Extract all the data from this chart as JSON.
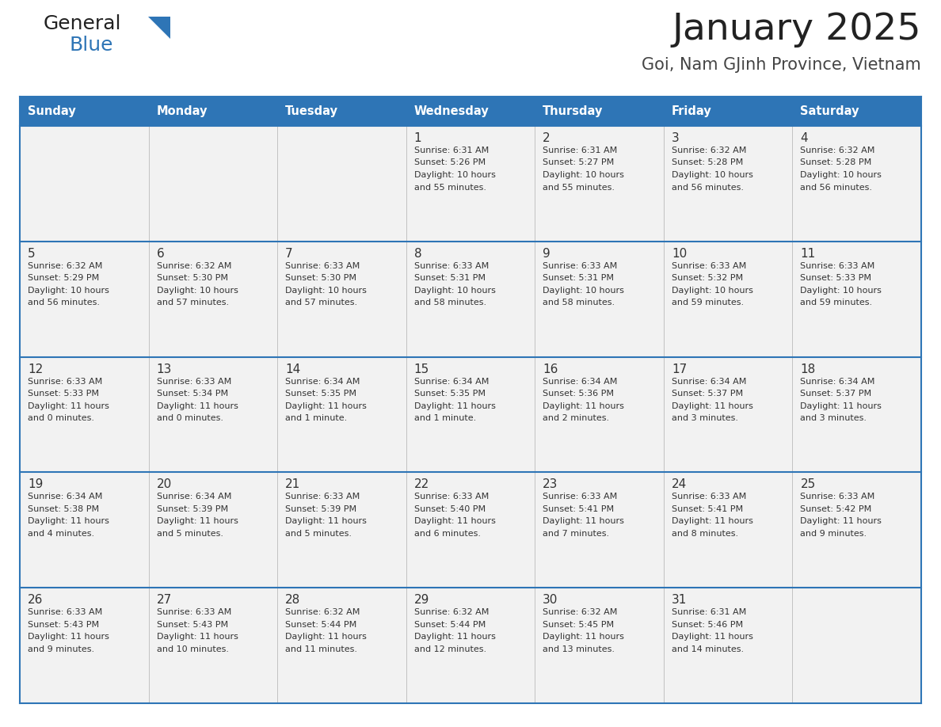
{
  "title": "January 2025",
  "subtitle": "Goi, Nam GJinh Province, Vietnam",
  "header_bg": "#2E75B6",
  "header_text_color": "#FFFFFF",
  "cell_bg_light": "#F2F2F2",
  "cell_bg_white": "#FFFFFF",
  "separator_color": "#2E75B6",
  "text_color": "#333333",
  "day_headers": [
    "Sunday",
    "Monday",
    "Tuesday",
    "Wednesday",
    "Thursday",
    "Friday",
    "Saturday"
  ],
  "calendar_data": [
    [
      {
        "day": "",
        "info": ""
      },
      {
        "day": "",
        "info": ""
      },
      {
        "day": "",
        "info": ""
      },
      {
        "day": "1",
        "info": "Sunrise: 6:31 AM\nSunset: 5:26 PM\nDaylight: 10 hours\nand 55 minutes."
      },
      {
        "day": "2",
        "info": "Sunrise: 6:31 AM\nSunset: 5:27 PM\nDaylight: 10 hours\nand 55 minutes."
      },
      {
        "day": "3",
        "info": "Sunrise: 6:32 AM\nSunset: 5:28 PM\nDaylight: 10 hours\nand 56 minutes."
      },
      {
        "day": "4",
        "info": "Sunrise: 6:32 AM\nSunset: 5:28 PM\nDaylight: 10 hours\nand 56 minutes."
      }
    ],
    [
      {
        "day": "5",
        "info": "Sunrise: 6:32 AM\nSunset: 5:29 PM\nDaylight: 10 hours\nand 56 minutes."
      },
      {
        "day": "6",
        "info": "Sunrise: 6:32 AM\nSunset: 5:30 PM\nDaylight: 10 hours\nand 57 minutes."
      },
      {
        "day": "7",
        "info": "Sunrise: 6:33 AM\nSunset: 5:30 PM\nDaylight: 10 hours\nand 57 minutes."
      },
      {
        "day": "8",
        "info": "Sunrise: 6:33 AM\nSunset: 5:31 PM\nDaylight: 10 hours\nand 58 minutes."
      },
      {
        "day": "9",
        "info": "Sunrise: 6:33 AM\nSunset: 5:31 PM\nDaylight: 10 hours\nand 58 minutes."
      },
      {
        "day": "10",
        "info": "Sunrise: 6:33 AM\nSunset: 5:32 PM\nDaylight: 10 hours\nand 59 minutes."
      },
      {
        "day": "11",
        "info": "Sunrise: 6:33 AM\nSunset: 5:33 PM\nDaylight: 10 hours\nand 59 minutes."
      }
    ],
    [
      {
        "day": "12",
        "info": "Sunrise: 6:33 AM\nSunset: 5:33 PM\nDaylight: 11 hours\nand 0 minutes."
      },
      {
        "day": "13",
        "info": "Sunrise: 6:33 AM\nSunset: 5:34 PM\nDaylight: 11 hours\nand 0 minutes."
      },
      {
        "day": "14",
        "info": "Sunrise: 6:34 AM\nSunset: 5:35 PM\nDaylight: 11 hours\nand 1 minute."
      },
      {
        "day": "15",
        "info": "Sunrise: 6:34 AM\nSunset: 5:35 PM\nDaylight: 11 hours\nand 1 minute."
      },
      {
        "day": "16",
        "info": "Sunrise: 6:34 AM\nSunset: 5:36 PM\nDaylight: 11 hours\nand 2 minutes."
      },
      {
        "day": "17",
        "info": "Sunrise: 6:34 AM\nSunset: 5:37 PM\nDaylight: 11 hours\nand 3 minutes."
      },
      {
        "day": "18",
        "info": "Sunrise: 6:34 AM\nSunset: 5:37 PM\nDaylight: 11 hours\nand 3 minutes."
      }
    ],
    [
      {
        "day": "19",
        "info": "Sunrise: 6:34 AM\nSunset: 5:38 PM\nDaylight: 11 hours\nand 4 minutes."
      },
      {
        "day": "20",
        "info": "Sunrise: 6:34 AM\nSunset: 5:39 PM\nDaylight: 11 hours\nand 5 minutes."
      },
      {
        "day": "21",
        "info": "Sunrise: 6:33 AM\nSunset: 5:39 PM\nDaylight: 11 hours\nand 5 minutes."
      },
      {
        "day": "22",
        "info": "Sunrise: 6:33 AM\nSunset: 5:40 PM\nDaylight: 11 hours\nand 6 minutes."
      },
      {
        "day": "23",
        "info": "Sunrise: 6:33 AM\nSunset: 5:41 PM\nDaylight: 11 hours\nand 7 minutes."
      },
      {
        "day": "24",
        "info": "Sunrise: 6:33 AM\nSunset: 5:41 PM\nDaylight: 11 hours\nand 8 minutes."
      },
      {
        "day": "25",
        "info": "Sunrise: 6:33 AM\nSunset: 5:42 PM\nDaylight: 11 hours\nand 9 minutes."
      }
    ],
    [
      {
        "day": "26",
        "info": "Sunrise: 6:33 AM\nSunset: 5:43 PM\nDaylight: 11 hours\nand 9 minutes."
      },
      {
        "day": "27",
        "info": "Sunrise: 6:33 AM\nSunset: 5:43 PM\nDaylight: 11 hours\nand 10 minutes."
      },
      {
        "day": "28",
        "info": "Sunrise: 6:32 AM\nSunset: 5:44 PM\nDaylight: 11 hours\nand 11 minutes."
      },
      {
        "day": "29",
        "info": "Sunrise: 6:32 AM\nSunset: 5:44 PM\nDaylight: 11 hours\nand 12 minutes."
      },
      {
        "day": "30",
        "info": "Sunrise: 6:32 AM\nSunset: 5:45 PM\nDaylight: 11 hours\nand 13 minutes."
      },
      {
        "day": "31",
        "info": "Sunrise: 6:31 AM\nSunset: 5:46 PM\nDaylight: 11 hours\nand 14 minutes."
      },
      {
        "day": "",
        "info": ""
      }
    ]
  ],
  "logo_general_color": "#222222",
  "logo_blue_color": "#2E75B6",
  "title_color": "#222222",
  "subtitle_color": "#444444",
  "fig_width": 11.88,
  "fig_height": 9.18,
  "dpi": 100
}
